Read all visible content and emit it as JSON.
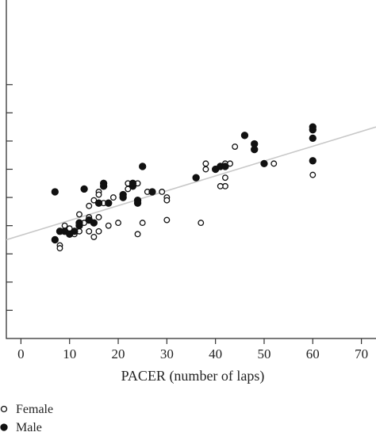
{
  "chart_data": {
    "type": "scatter",
    "title": "",
    "xlabel": "PACER (number of laps)",
    "ylabel": "",
    "xlim": [
      -3,
      73
    ],
    "ylim": [
      -2,
      10
    ],
    "x_ticks": [
      "0",
      "10",
      "20",
      "30",
      "40",
      "50",
      "60",
      "70"
    ],
    "y_tick_values": [
      -1,
      0,
      1,
      2,
      3,
      4,
      5,
      6,
      7
    ],
    "grid": false,
    "legend_position": "bottom-left",
    "trendline": {
      "color": "#c8c8c8",
      "x": [
        -3,
        73
      ],
      "y": [
        1.5,
        5.5
      ]
    },
    "series": [
      {
        "name": "Female",
        "marker": "open-circle",
        "color": "#111111",
        "points": [
          [
            8,
            1.3
          ],
          [
            8,
            1.2
          ],
          [
            9,
            2.0
          ],
          [
            10,
            1.9
          ],
          [
            11,
            1.7
          ],
          [
            12,
            1.8
          ],
          [
            12,
            2.4
          ],
          [
            13,
            2.1
          ],
          [
            14,
            1.8
          ],
          [
            14,
            2.7
          ],
          [
            14,
            2.3
          ],
          [
            15,
            1.6
          ],
          [
            15,
            2.9
          ],
          [
            16,
            3.2
          ],
          [
            16,
            3.1
          ],
          [
            16,
            2.3
          ],
          [
            16,
            1.8
          ],
          [
            17,
            3.4
          ],
          [
            17,
            2.8
          ],
          [
            18,
            2.0
          ],
          [
            19,
            3.0
          ],
          [
            20,
            2.1
          ],
          [
            22,
            3.5
          ],
          [
            22,
            3.3
          ],
          [
            24,
            3.5
          ],
          [
            24,
            1.7
          ],
          [
            25,
            2.1
          ],
          [
            26,
            3.2
          ],
          [
            29,
            3.2
          ],
          [
            30,
            3.0
          ],
          [
            30,
            2.9
          ],
          [
            30,
            2.2
          ],
          [
            37,
            2.1
          ],
          [
            38,
            4.0
          ],
          [
            38,
            4.2
          ],
          [
            42,
            4.2
          ],
          [
            42,
            3.7
          ],
          [
            42,
            3.4
          ],
          [
            43,
            4.2
          ],
          [
            44,
            4.8
          ],
          [
            52,
            4.2
          ],
          [
            60,
            3.8
          ],
          [
            41,
            3.4
          ]
        ]
      },
      {
        "name": "Male",
        "marker": "filled-circle",
        "color": "#111111",
        "points": [
          [
            7,
            3.2
          ],
          [
            7,
            1.5
          ],
          [
            8,
            1.8
          ],
          [
            9,
            1.8
          ],
          [
            10,
            1.7
          ],
          [
            11,
            1.8
          ],
          [
            12,
            2.0
          ],
          [
            12,
            2.1
          ],
          [
            13,
            3.3
          ],
          [
            14,
            2.2
          ],
          [
            15,
            2.1
          ],
          [
            16,
            2.8
          ],
          [
            17,
            3.5
          ],
          [
            17,
            3.4
          ],
          [
            18,
            2.8
          ],
          [
            21,
            3.1
          ],
          [
            21,
            3.0
          ],
          [
            23,
            3.4
          ],
          [
            23,
            3.5
          ],
          [
            24,
            2.9
          ],
          [
            24,
            2.8
          ],
          [
            25,
            4.1
          ],
          [
            27,
            3.2
          ],
          [
            36,
            3.7
          ],
          [
            40,
            4.0
          ],
          [
            41,
            4.1
          ],
          [
            42,
            4.1
          ],
          [
            46,
            5.2
          ],
          [
            48,
            4.9
          ],
          [
            48,
            4.7
          ],
          [
            50,
            4.2
          ],
          [
            60,
            5.5
          ],
          [
            60,
            5.4
          ],
          [
            60,
            5.1
          ],
          [
            60,
            4.3
          ]
        ]
      }
    ]
  }
}
